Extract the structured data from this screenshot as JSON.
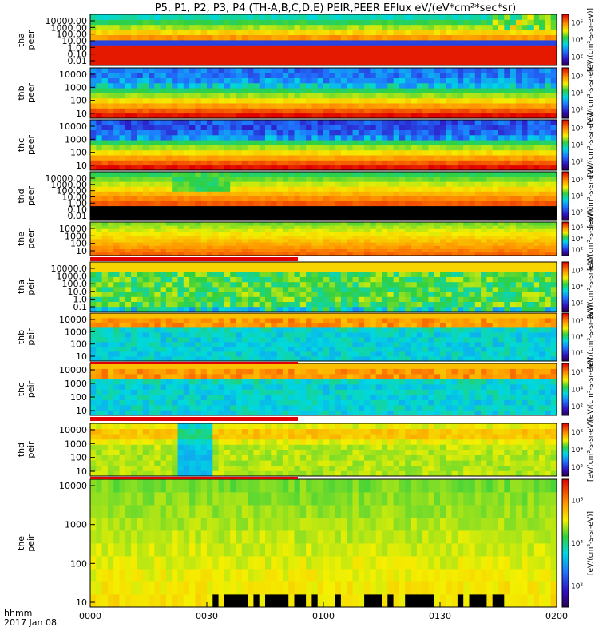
{
  "chart_data": {
    "type": "heatmap",
    "title": "P5, P1, P2, P3, P4 (TH-A,B,C,D,E) PEIR,PEER EFlux eV/(eV*cm²*sec*sr)",
    "xlabel": "hhmm",
    "date_label": "2017 Jan 08",
    "x_range": [
      "0000",
      "0200"
    ],
    "x_ticks": [
      "0000",
      "0030",
      "0100",
      "0130",
      "0200"
    ],
    "colorbar_label": "[eV/(cm²-s-sr-eV)]",
    "colorbar_range_log10": [
      1,
      7
    ],
    "colorbar_ticks": [
      "10²",
      "10⁴",
      "10⁶"
    ],
    "panels": [
      {
        "probe": "tha",
        "species": "peer",
        "ylabels": [
          "10000.00",
          "1000.00",
          "100.00",
          "10.00",
          "1.00",
          "0.10",
          "0.01"
        ]
      },
      {
        "probe": "thb",
        "species": "peer",
        "ylabels": [
          "10000",
          "1000",
          "100",
          "10"
        ]
      },
      {
        "probe": "thc",
        "species": "peer",
        "ylabels": [
          "10000",
          "1000",
          "100",
          "10"
        ]
      },
      {
        "probe": "thd",
        "species": "peer",
        "ylabels": [
          "10000.00",
          "1000.00",
          "100.00",
          "10.00",
          "1.00",
          "0.10",
          "0.01"
        ]
      },
      {
        "probe": "the",
        "species": "peer",
        "ylabels": [
          "10000",
          "1000",
          "100",
          "10"
        ]
      },
      {
        "probe": "tha",
        "species": "peir",
        "ylabels": [
          "10000.0",
          "1000.0",
          "100.0",
          "10.0",
          "1.0",
          "0.1"
        ]
      },
      {
        "probe": "thb",
        "species": "peir",
        "ylabels": [
          "10000",
          "1000",
          "100",
          "10"
        ]
      },
      {
        "probe": "thc",
        "species": "peir",
        "ylabels": [
          "10000",
          "1000",
          "100",
          "10"
        ]
      },
      {
        "probe": "thd",
        "species": "peir",
        "ylabels": [
          "10000",
          "1000",
          "100",
          "10"
        ]
      },
      {
        "probe": "the",
        "species": "peir",
        "ylabels": [
          "10000",
          "1000",
          "100",
          "10"
        ]
      }
    ]
  }
}
